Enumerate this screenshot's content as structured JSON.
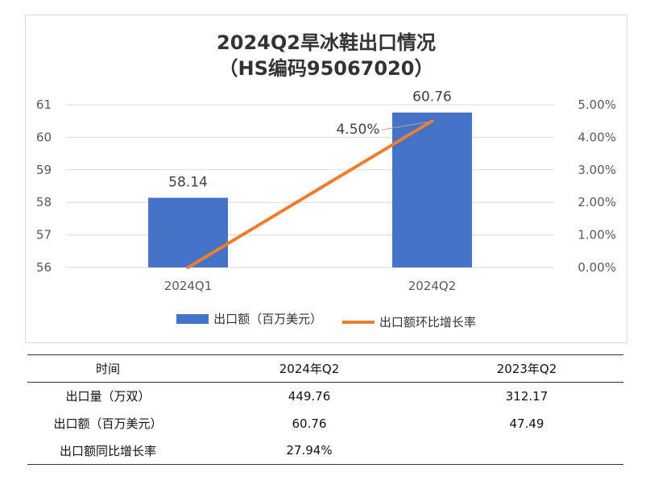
{
  "chart_data": {
    "type": "bar+line",
    "title_line1": "2024Q2旱冰鞋出口情况",
    "title_line2": "（HS编码95067020）",
    "categories": [
      "2024Q1",
      "2024Q2"
    ],
    "series": [
      {
        "name": "出口额（百万美元）",
        "type": "bar",
        "axis": "left",
        "values": [
          58.14,
          60.76
        ],
        "labels": [
          "58.14",
          "60.76"
        ]
      },
      {
        "name": "出口额环比增长率",
        "type": "line",
        "axis": "right",
        "values": [
          0.0,
          4.5
        ],
        "labels": [
          "",
          "4.50%"
        ]
      }
    ],
    "y_left": {
      "min": 56,
      "max": 61,
      "ticks": [
        "56",
        "57",
        "58",
        "59",
        "60",
        "61"
      ]
    },
    "y_right": {
      "min": 0,
      "max": 5,
      "ticks": [
        "0.00%",
        "1.00%",
        "2.00%",
        "3.00%",
        "4.00%",
        "5.00%"
      ]
    },
    "grid": true,
    "legend_position": "bottom",
    "colors": {
      "bar": "#4472c4",
      "line": "#ed7d31",
      "grid": "#d9d9d9"
    }
  },
  "table": {
    "header": [
      "时间",
      "2024年Q2",
      "2023年Q2"
    ],
    "rows": [
      [
        "出口量（万双）",
        "449.76",
        "312.17"
      ],
      [
        "出口额（百万美元）",
        "60.76",
        "47.49"
      ],
      [
        "出口额同比增长率",
        "27.94%",
        ""
      ]
    ]
  }
}
